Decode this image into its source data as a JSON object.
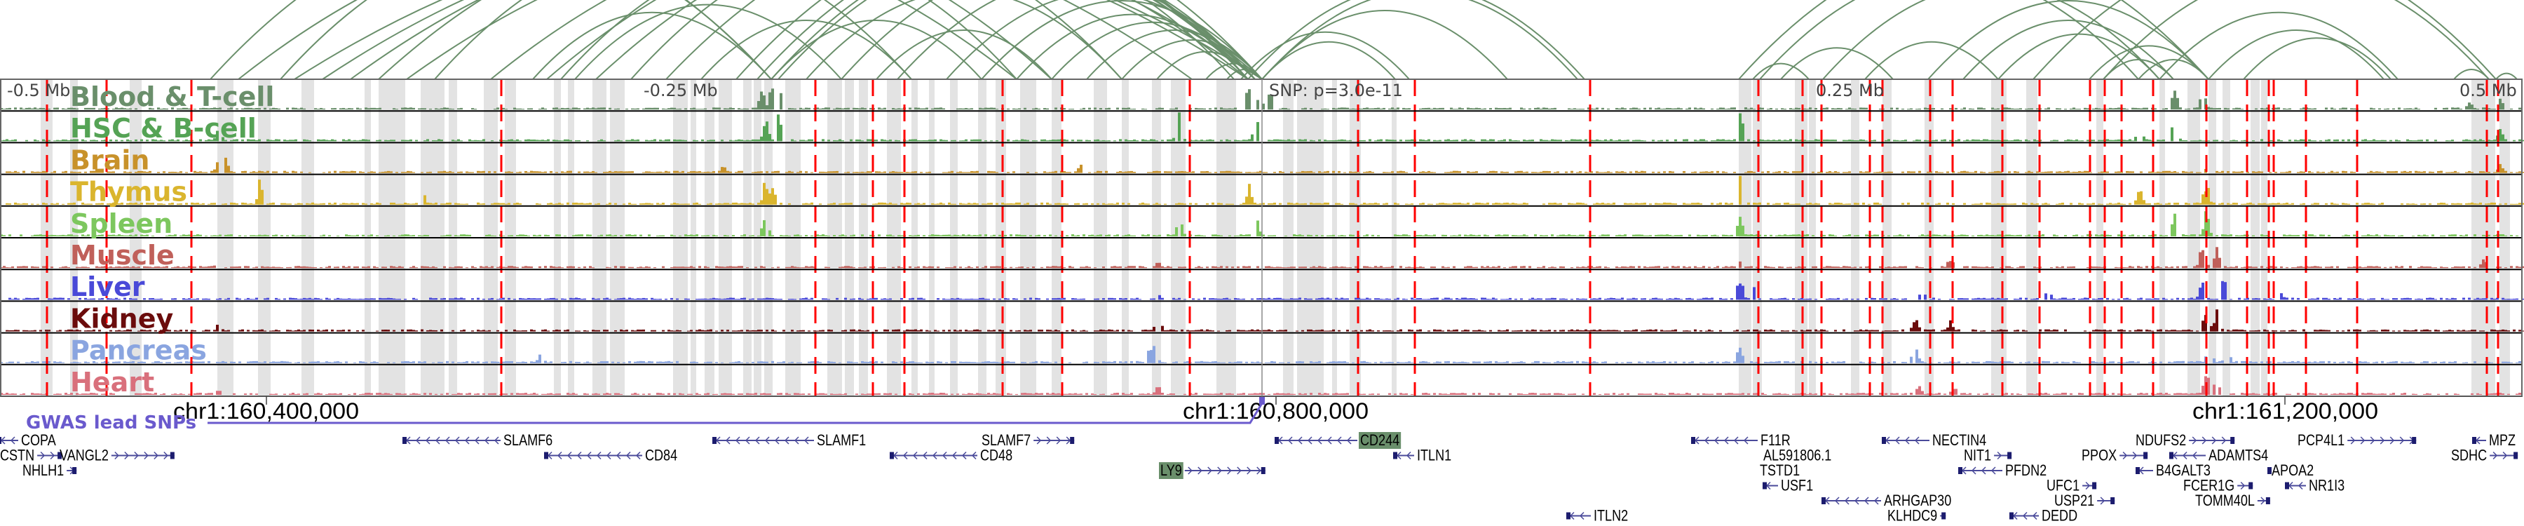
{
  "tracks": [
    {
      "label": "Blood & T-cell",
      "color": "#6a8f6b"
    },
    {
      "label": "HSC & B-cell",
      "color": "#55a355"
    },
    {
      "label": "Brain",
      "color": "#c8922a"
    },
    {
      "label": "Thymus",
      "color": "#dab52e"
    },
    {
      "label": "Spleen",
      "color": "#7dc75e"
    },
    {
      "label": "Muscle",
      "color": "#c0605a"
    },
    {
      "label": "Liver",
      "color": "#4a4ad8"
    },
    {
      "label": "Kidney",
      "color": "#6b0c0c"
    },
    {
      "label": "Pancreas",
      "color": "#8aa5e0"
    },
    {
      "label": "Heart",
      "color": "#d9707c"
    }
  ],
  "axis_labels": {
    "left": "-0.5 Mb",
    "left_mid": "-0.25 Mb",
    "snp": "SNP: p=3.0e-11",
    "right_mid": "0.25 Mb",
    "right": "0.5 Mb"
  },
  "coordinates": [
    "chr1:160,400,000",
    "chr1:160,800,000",
    "chr1:161,200,000"
  ],
  "gwas_label": "GWAS lead SNPs",
  "colors": {
    "arc": "#6a8f6b",
    "gwas": "#6a5acd",
    "gene": "#1c1c6e",
    "highlight": "#6a8f6b",
    "red_line": "#ff0000",
    "band": "#e3e3e3"
  },
  "genes": [
    "COPA",
    "CSTN",
    "NHLH1",
    "VANGL2",
    "SLAMF6",
    "CD84",
    "SLAMF1",
    "SLAMF7",
    "CD48",
    "LY9",
    "CD244",
    "ITLN1",
    "ITLN2",
    "F11R",
    "AL591806.1",
    "TSTD1",
    "USF1",
    "ARHGAP30",
    "KLHDC9",
    "NECTIN4",
    "NIT1",
    "PFDN2",
    "DEDD",
    "UFC1",
    "USP21",
    "PPOX",
    "NDUFS2",
    "B4GALT3",
    "ADAMTS4",
    "FCER1G",
    "TOMM40L",
    "APOA2",
    "NR1I3",
    "PCP4L1",
    "SDHC",
    "MPZ"
  ],
  "highlighted_genes": [
    "LY9",
    "CD244"
  ]
}
